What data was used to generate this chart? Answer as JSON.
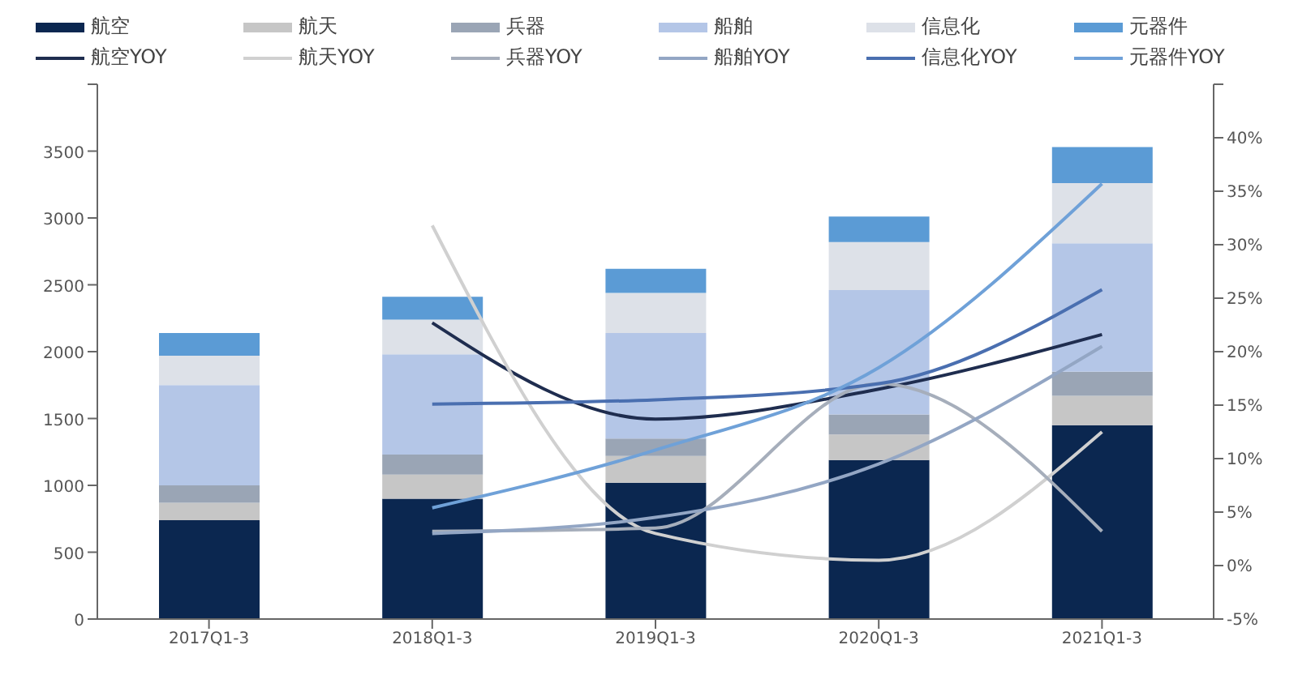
{
  "chart_data": {
    "type": "bar",
    "stacked": true,
    "categories": [
      "2017Q1-3",
      "2018Q1-3",
      "2019Q1-3",
      "2020Q1-3",
      "2021Q1-3"
    ],
    "series": [
      {
        "name": "航空",
        "color": "#0b2750",
        "values": [
          740,
          900,
          1020,
          1190,
          1450
        ]
      },
      {
        "name": "航天",
        "color": "#c6c6c6",
        "values": [
          130,
          180,
          200,
          190,
          220
        ]
      },
      {
        "name": "兵器",
        "color": "#9aa5b5",
        "values": [
          130,
          150,
          130,
          150,
          180
        ]
      },
      {
        "name": "船舶",
        "color": "#b4c6e7",
        "values": [
          750,
          750,
          790,
          930,
          960
        ]
      },
      {
        "name": "信息化",
        "color": "#dde1e8",
        "values": [
          220,
          260,
          300,
          360,
          450
        ]
      },
      {
        "name": "元器件",
        "color": "#5b9bd5",
        "values": [
          170,
          170,
          180,
          190,
          270
        ]
      },
      {
        "name": "航空YOY",
        "type": "line",
        "axis": "y2",
        "color": "#1f2d4f",
        "values": [
          null,
          22.7,
          13.7,
          16.5,
          21.6
        ]
      },
      {
        "name": "航天YOY",
        "type": "line",
        "axis": "y2",
        "color": "#d0d0d0",
        "values": [
          null,
          31.8,
          3.0,
          0.5,
          12.5
        ]
      },
      {
        "name": "兵器YOY",
        "type": "line",
        "axis": "y2",
        "color": "#a6aebb",
        "values": [
          null,
          3.2,
          3.5,
          17.0,
          3.2
        ]
      },
      {
        "name": "船舶YOY",
        "type": "line",
        "axis": "y2",
        "color": "#93a6c4",
        "values": [
          null,
          3.0,
          4.5,
          9.5,
          20.5
        ]
      },
      {
        "name": "信息化YOY",
        "type": "line",
        "axis": "y2",
        "color": "#4a6fb0",
        "values": [
          null,
          15.1,
          15.5,
          17.0,
          25.8
        ]
      },
      {
        "name": "元器件YOY",
        "type": "line",
        "axis": "y2",
        "color": "#6fa1d8",
        "values": [
          null,
          5.4,
          10.8,
          18.5,
          35.7
        ]
      }
    ],
    "ylim": [
      0,
      4000
    ],
    "yticks": [
      0,
      500,
      1000,
      1500,
      2000,
      2500,
      3000,
      3500,
      {
        "value": 4000,
        "label": null
      }
    ],
    "y2lim": [
      -5,
      45
    ],
    "y2ticks": [
      {
        "value": -5,
        "label": "-5%"
      },
      {
        "value": 0,
        "label": "0%"
      },
      {
        "value": 5,
        "label": "5%"
      },
      {
        "value": 10,
        "label": "10%"
      },
      {
        "value": 15,
        "label": "15%"
      },
      {
        "value": 20,
        "label": "20%"
      },
      {
        "value": 25,
        "label": "25%"
      },
      {
        "value": 30,
        "label": "30%"
      },
      {
        "value": 35,
        "label": "35%"
      },
      {
        "value": 40,
        "label": "40%"
      },
      {
        "value": 45,
        "label": null
      }
    ],
    "legend": "top",
    "grid": false,
    "marker": "none",
    "line_style": "solid"
  }
}
